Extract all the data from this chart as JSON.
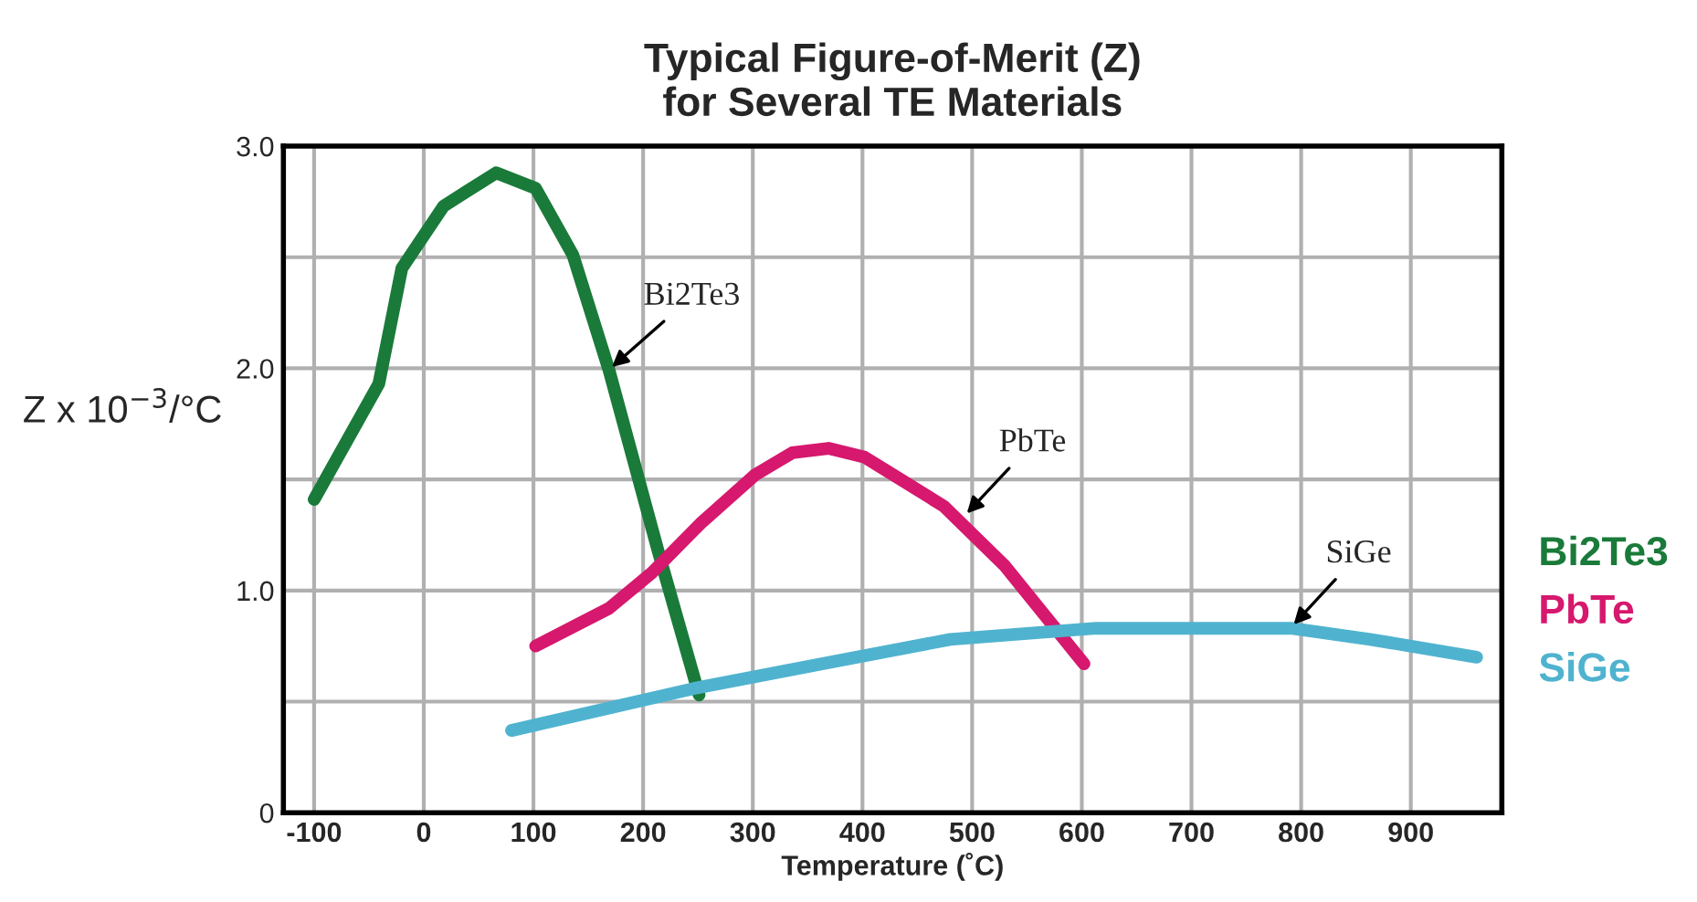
{
  "chart_data": {
    "type": "line",
    "title": "Typical Figure-of-Merit (Z)\nfor Several TE Materials",
    "xlabel": "Temperature (˚C)",
    "ylabel": "Z x 10$^{−3}$/°C",
    "xlim": [
      -128,
      983
    ],
    "xticks": [
      -100,
      0,
      100,
      200,
      300,
      400,
      500,
      600,
      700,
      800,
      900
    ],
    "ylim": [
      0,
      3
    ],
    "yticks": [
      0,
      {
        "value": 0.5,
        "label": null
      },
      {
        "value": 1,
        "label": "1.0"
      },
      {
        "value": 1.5,
        "label": null
      },
      {
        "value": 2,
        "label": "2.0"
      },
      {
        "value": 2.5,
        "label": null
      },
      {
        "value": 3,
        "label": "3.0"
      }
    ],
    "grid": true,
    "legend": "right",
    "line_style": "solid",
    "marker": "none",
    "series": [
      {
        "name": "Bi2Te3",
        "color": "#1a7a3a",
        "x": [
          -100,
          -41,
          -20,
          18,
          66,
          102,
          136,
          169,
          213,
          251
        ],
        "values": [
          1.41,
          1.93,
          2.45,
          2.73,
          2.88,
          2.81,
          2.51,
          1.99,
          1.19,
          0.53
        ]
      },
      {
        "name": "PbTe",
        "color": "#d6186e",
        "x": [
          102,
          169,
          208,
          252,
          302,
          336,
          369,
          402,
          474,
          530,
          602
        ],
        "values": [
          0.75,
          0.92,
          1.08,
          1.3,
          1.52,
          1.62,
          1.64,
          1.6,
          1.38,
          1.11,
          0.67
        ]
      },
      {
        "name": "SiGe",
        "color": "#4fb3cf",
        "x": [
          80,
          247,
          363,
          480,
          558,
          613,
          791,
          863,
          960
        ],
        "values": [
          0.37,
          0.56,
          0.67,
          0.78,
          0.81,
          0.83,
          0.83,
          0.78,
          0.7
        ]
      }
    ],
    "annotations": [
      {
        "text": "Bi2Te3",
        "x": 168,
        "y": 1.99
      },
      {
        "text": "PbTe",
        "x": 492,
        "y": 1.33
      },
      {
        "text": "SiGe",
        "x": 790,
        "y": 0.83
      }
    ]
  }
}
